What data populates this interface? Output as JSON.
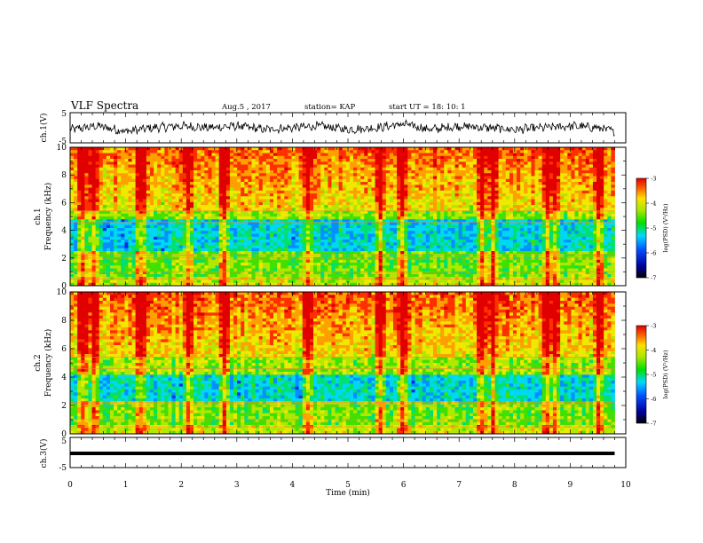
{
  "header": {
    "title": "VLF Spectra",
    "date": "Aug.5 , 2017",
    "station": "station= KAP",
    "start": "start UT = 18: 10: 1"
  },
  "chart_data": [
    {
      "type": "line",
      "panel": "ch1-waveform",
      "ylabel": "ch.1(V)",
      "xlim": [
        0,
        10
      ],
      "ylim": [
        -5,
        5
      ],
      "yticks": [
        "5",
        "-5"
      ],
      "description_of_trace": "noisy waveform roughly between -3 and +3 V",
      "trace": {
        "x": [
          0.0,
          0.5,
          1.0,
          1.5,
          2.0,
          2.5,
          3.0,
          3.5,
          4.0,
          4.5,
          5.0,
          5.5,
          6.0,
          6.5,
          7.0,
          7.5,
          8.0,
          8.5,
          9.0,
          9.5,
          9.8
        ],
        "y": [
          -1,
          1,
          -2,
          0,
          1,
          0,
          1,
          -1,
          0,
          1,
          -1,
          0,
          2,
          -1,
          1,
          0,
          -1,
          0,
          1,
          0,
          -2
        ]
      }
    },
    {
      "type": "heatmap",
      "panel": "ch1-spectrogram",
      "xlabel": "Time (min)",
      "ylabel_top": "ch.1",
      "ylabel": "Frequency (kHz)",
      "xlim": [
        0,
        10
      ],
      "ylim": [
        0,
        10
      ],
      "yticks": [
        "0",
        "2",
        "4",
        "6",
        "8",
        "10"
      ],
      "colorbar": {
        "label": "log(PSD) (V²/Hz)",
        "ticks": [
          "-3",
          "-4",
          "-5",
          "-6",
          "-7"
        ],
        "range": [
          -7,
          -3
        ]
      },
      "data_end_min": 9.8,
      "bright_columns_min": [
        0.2,
        0.4,
        1.3,
        2.1,
        2.8,
        4.25,
        4.3,
        5.6,
        6.0,
        7.4,
        7.6,
        8.6,
        8.7,
        9.5
      ]
    },
    {
      "type": "heatmap",
      "panel": "ch2-spectrogram",
      "ylabel_top": "ch.2",
      "ylabel": "Frequency (kHz)",
      "xlim": [
        0,
        10
      ],
      "ylim": [
        0,
        10
      ],
      "yticks": [
        "0",
        "2",
        "4",
        "6",
        "8",
        "10"
      ],
      "colorbar": {
        "label": "log(PSD) (V²/Hz)",
        "ticks": [
          "-3",
          "-4",
          "-5",
          "-6",
          "-7"
        ],
        "range": [
          -7,
          -3
        ]
      },
      "data_end_min": 9.8,
      "bright_columns_min": [
        0.2,
        0.4,
        1.3,
        2.1,
        2.8,
        4.25,
        4.3,
        5.6,
        6.0,
        7.4,
        7.6,
        8.6,
        8.7,
        9.5
      ]
    },
    {
      "type": "line",
      "panel": "ch3-waveform",
      "ylabel": "ch.3(V)",
      "xlabel": "Time (min)",
      "xlim": [
        0,
        10
      ],
      "ylim": [
        -5,
        5
      ],
      "yticks": [
        "5",
        "-5"
      ],
      "xticks": [
        "0",
        "1",
        "2",
        "3",
        "4",
        "5",
        "6",
        "7",
        "8",
        "9",
        "10"
      ],
      "trace": {
        "x": [
          0,
          9.8
        ],
        "y": [
          0,
          0
        ]
      }
    }
  ]
}
